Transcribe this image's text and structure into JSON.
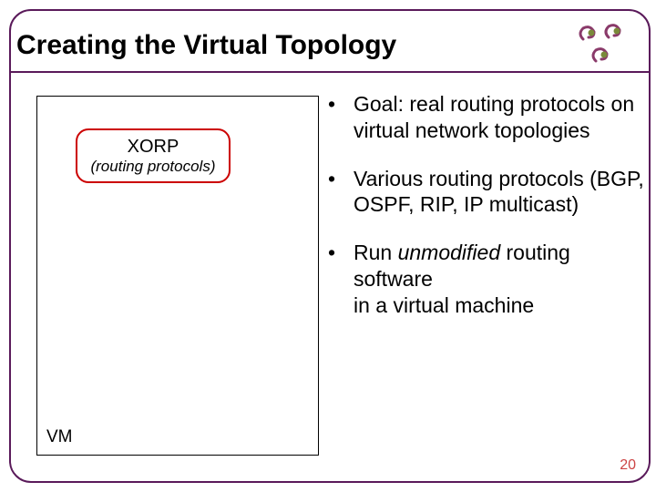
{
  "title": "Creating the Virtual Topology",
  "left_panel": {
    "xorp": {
      "label": "XORP",
      "sub": "(routing protocols)",
      "border_color": "#cc0000"
    },
    "vm_label": "VM"
  },
  "bullets": [
    {
      "prefix": "• ",
      "text": "Goal: real routing protocols on virtual network topologies"
    },
    {
      "prefix": "• ",
      "text": "Various routing protocols (BGP, OSPF, RIP, IP multicast)"
    },
    {
      "prefix": "• ",
      "text_before": "Run ",
      "italic": "unmodified",
      "text_after": " routing software\nin a virtual machine"
    }
  ],
  "page_number": "20",
  "colors": {
    "frame": "#5a1a5a",
    "text": "#000000",
    "page_num": "#cc4444",
    "logo_swirl": "#8a3a6a",
    "logo_dot": "#7a8a3a"
  },
  "logo": {
    "description": "three maroon swirls with olive dots"
  }
}
